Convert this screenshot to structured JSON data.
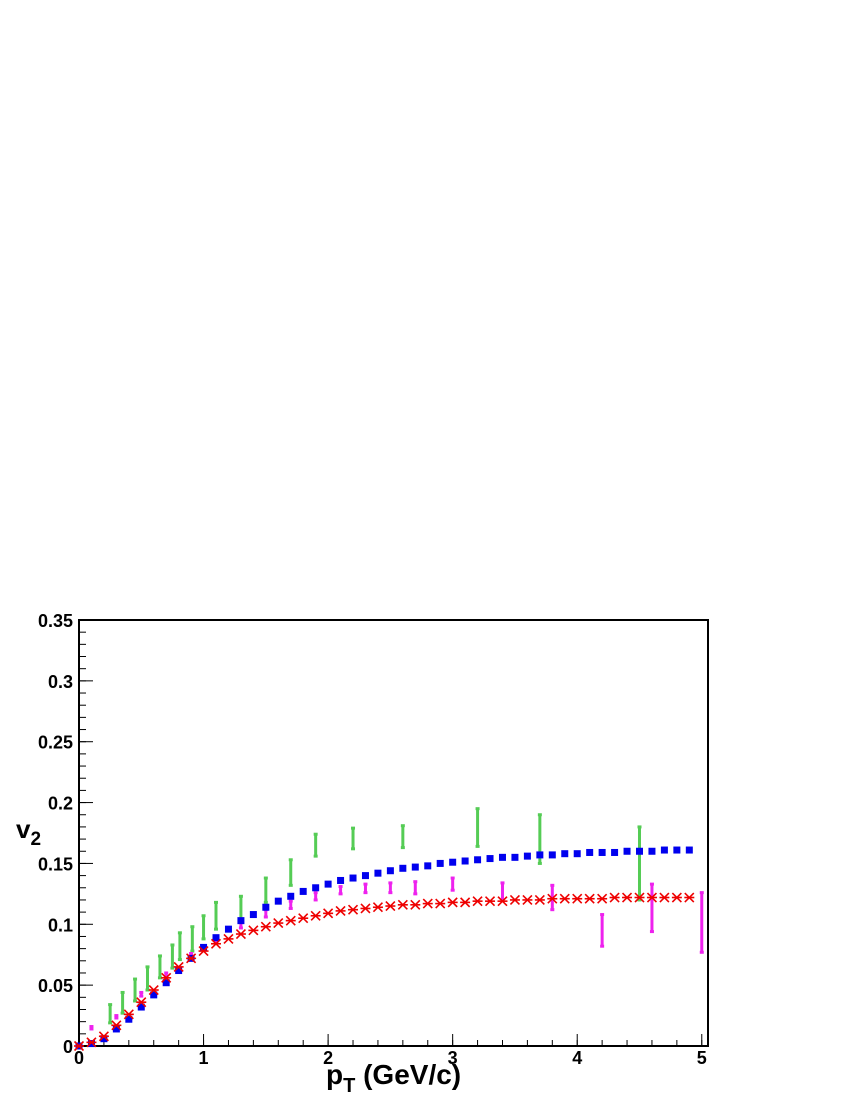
{
  "chart_data": {
    "type": "scatter",
    "title": "",
    "xlabel": {
      "main": "p",
      "sub": "T",
      "unit": " (GeV/c)"
    },
    "ylabel": {
      "main": "v",
      "sub": "2"
    },
    "xlim": [
      0,
      5.05
    ],
    "ylim": [
      0,
      0.35
    ],
    "x_ticks": [
      "0",
      "1",
      "2",
      "3",
      "4",
      "5"
    ],
    "y_ticks": [
      "0",
      "0.05",
      "0.1",
      "0.15",
      "0.2",
      "0.25",
      "0.3",
      "0.35"
    ],
    "grid": false,
    "series": [
      {
        "marker": "bar",
        "color": "#55cc55",
        "points": [
          {
            "x": 0.25,
            "lo": 0.019,
            "hi": 0.034
          },
          {
            "x": 0.35,
            "lo": 0.027,
            "hi": 0.044
          },
          {
            "x": 0.45,
            "lo": 0.037,
            "hi": 0.055
          },
          {
            "x": 0.55,
            "lo": 0.046,
            "hi": 0.065
          },
          {
            "x": 0.65,
            "lo": 0.056,
            "hi": 0.074
          },
          {
            "x": 0.75,
            "lo": 0.064,
            "hi": 0.083
          },
          {
            "x": 0.81,
            "lo": 0.071,
            "hi": 0.093
          },
          {
            "x": 0.91,
            "lo": 0.078,
            "hi": 0.098
          },
          {
            "x": 1.0,
            "lo": 0.088,
            "hi": 0.107
          },
          {
            "x": 1.1,
            "lo": 0.096,
            "hi": 0.118
          },
          {
            "x": 1.3,
            "lo": 0.104,
            "hi": 0.123
          },
          {
            "x": 1.5,
            "lo": 0.118,
            "hi": 0.138
          },
          {
            "x": 1.7,
            "lo": 0.132,
            "hi": 0.153
          },
          {
            "x": 1.9,
            "lo": 0.156,
            "hi": 0.174
          },
          {
            "x": 2.2,
            "lo": 0.162,
            "hi": 0.179
          },
          {
            "x": 2.6,
            "lo": 0.163,
            "hi": 0.181
          },
          {
            "x": 3.2,
            "lo": 0.164,
            "hi": 0.195
          },
          {
            "x": 3.7,
            "lo": 0.15,
            "hi": 0.19
          },
          {
            "x": 4.5,
            "lo": 0.12,
            "hi": 0.18
          }
        ]
      },
      {
        "marker": "bar",
        "color": "#ee22ee",
        "points": [
          {
            "x": 0.1,
            "lo": 0.014,
            "hi": 0.016
          },
          {
            "x": 0.3,
            "lo": 0.023,
            "hi": 0.025
          },
          {
            "x": 0.5,
            "lo": 0.041,
            "hi": 0.044
          },
          {
            "x": 0.7,
            "lo": 0.057,
            "hi": 0.06
          },
          {
            "x": 0.9,
            "lo": 0.072,
            "hi": 0.076
          },
          {
            "x": 1.1,
            "lo": 0.085,
            "hi": 0.09
          },
          {
            "x": 1.3,
            "lo": 0.097,
            "hi": 0.102
          },
          {
            "x": 1.5,
            "lo": 0.106,
            "hi": 0.112
          },
          {
            "x": 1.7,
            "lo": 0.113,
            "hi": 0.119
          },
          {
            "x": 1.9,
            "lo": 0.12,
            "hi": 0.126
          },
          {
            "x": 2.1,
            "lo": 0.125,
            "hi": 0.131
          },
          {
            "x": 2.3,
            "lo": 0.126,
            "hi": 0.133
          },
          {
            "x": 2.5,
            "lo": 0.126,
            "hi": 0.134
          },
          {
            "x": 2.7,
            "lo": 0.125,
            "hi": 0.135
          },
          {
            "x": 3.0,
            "lo": 0.128,
            "hi": 0.138
          },
          {
            "x": 3.4,
            "lo": 0.12,
            "hi": 0.134
          },
          {
            "x": 3.8,
            "lo": 0.112,
            "hi": 0.132
          },
          {
            "x": 4.2,
            "lo": 0.082,
            "hi": 0.108
          },
          {
            "x": 4.6,
            "lo": 0.094,
            "hi": 0.133
          },
          {
            "x": 5.0,
            "lo": 0.077,
            "hi": 0.126
          }
        ]
      },
      {
        "marker": "square",
        "color": "#0000ee",
        "x": [
          0.0,
          0.1,
          0.2,
          0.3,
          0.4,
          0.5,
          0.6,
          0.7,
          0.8,
          0.9,
          1.0,
          1.1,
          1.2,
          1.3,
          1.4,
          1.5,
          1.6,
          1.7,
          1.8,
          1.9,
          2.0,
          2.1,
          2.2,
          2.3,
          2.4,
          2.5,
          2.6,
          2.7,
          2.8,
          2.9,
          3.0,
          3.1,
          3.2,
          3.3,
          3.4,
          3.5,
          3.6,
          3.7,
          3.8,
          3.9,
          4.0,
          4.1,
          4.2,
          4.3,
          4.4,
          4.5,
          4.6,
          4.7,
          4.8,
          4.9
        ],
        "y": [
          0.0,
          0.002,
          0.006,
          0.014,
          0.022,
          0.032,
          0.042,
          0.052,
          0.062,
          0.072,
          0.081,
          0.089,
          0.096,
          0.103,
          0.108,
          0.114,
          0.119,
          0.123,
          0.127,
          0.13,
          0.133,
          0.136,
          0.138,
          0.14,
          0.142,
          0.144,
          0.146,
          0.147,
          0.148,
          0.15,
          0.151,
          0.152,
          0.153,
          0.154,
          0.155,
          0.155,
          0.156,
          0.157,
          0.157,
          0.158,
          0.158,
          0.159,
          0.159,
          0.159,
          0.16,
          0.16,
          0.16,
          0.161,
          0.161,
          0.161
        ]
      },
      {
        "marker": "star",
        "color": "#ee0000",
        "x": [
          0.0,
          0.1,
          0.2,
          0.3,
          0.4,
          0.5,
          0.6,
          0.7,
          0.8,
          0.9,
          1.0,
          1.1,
          1.2,
          1.3,
          1.4,
          1.5,
          1.6,
          1.7,
          1.8,
          1.9,
          2.0,
          2.1,
          2.2,
          2.3,
          2.4,
          2.5,
          2.6,
          2.7,
          2.8,
          2.9,
          3.0,
          3.1,
          3.2,
          3.3,
          3.4,
          3.5,
          3.6,
          3.7,
          3.8,
          3.9,
          4.0,
          4.1,
          4.2,
          4.3,
          4.4,
          4.5,
          4.6,
          4.7,
          4.8,
          4.9
        ],
        "y": [
          0.0,
          0.003,
          0.008,
          0.017,
          0.026,
          0.036,
          0.046,
          0.056,
          0.065,
          0.072,
          0.078,
          0.084,
          0.088,
          0.092,
          0.095,
          0.098,
          0.101,
          0.103,
          0.105,
          0.107,
          0.109,
          0.111,
          0.112,
          0.113,
          0.114,
          0.115,
          0.116,
          0.116,
          0.117,
          0.117,
          0.118,
          0.118,
          0.119,
          0.119,
          0.119,
          0.12,
          0.12,
          0.12,
          0.121,
          0.121,
          0.121,
          0.121,
          0.121,
          0.122,
          0.122,
          0.122,
          0.122,
          0.122,
          0.122,
          0.122
        ]
      }
    ]
  }
}
